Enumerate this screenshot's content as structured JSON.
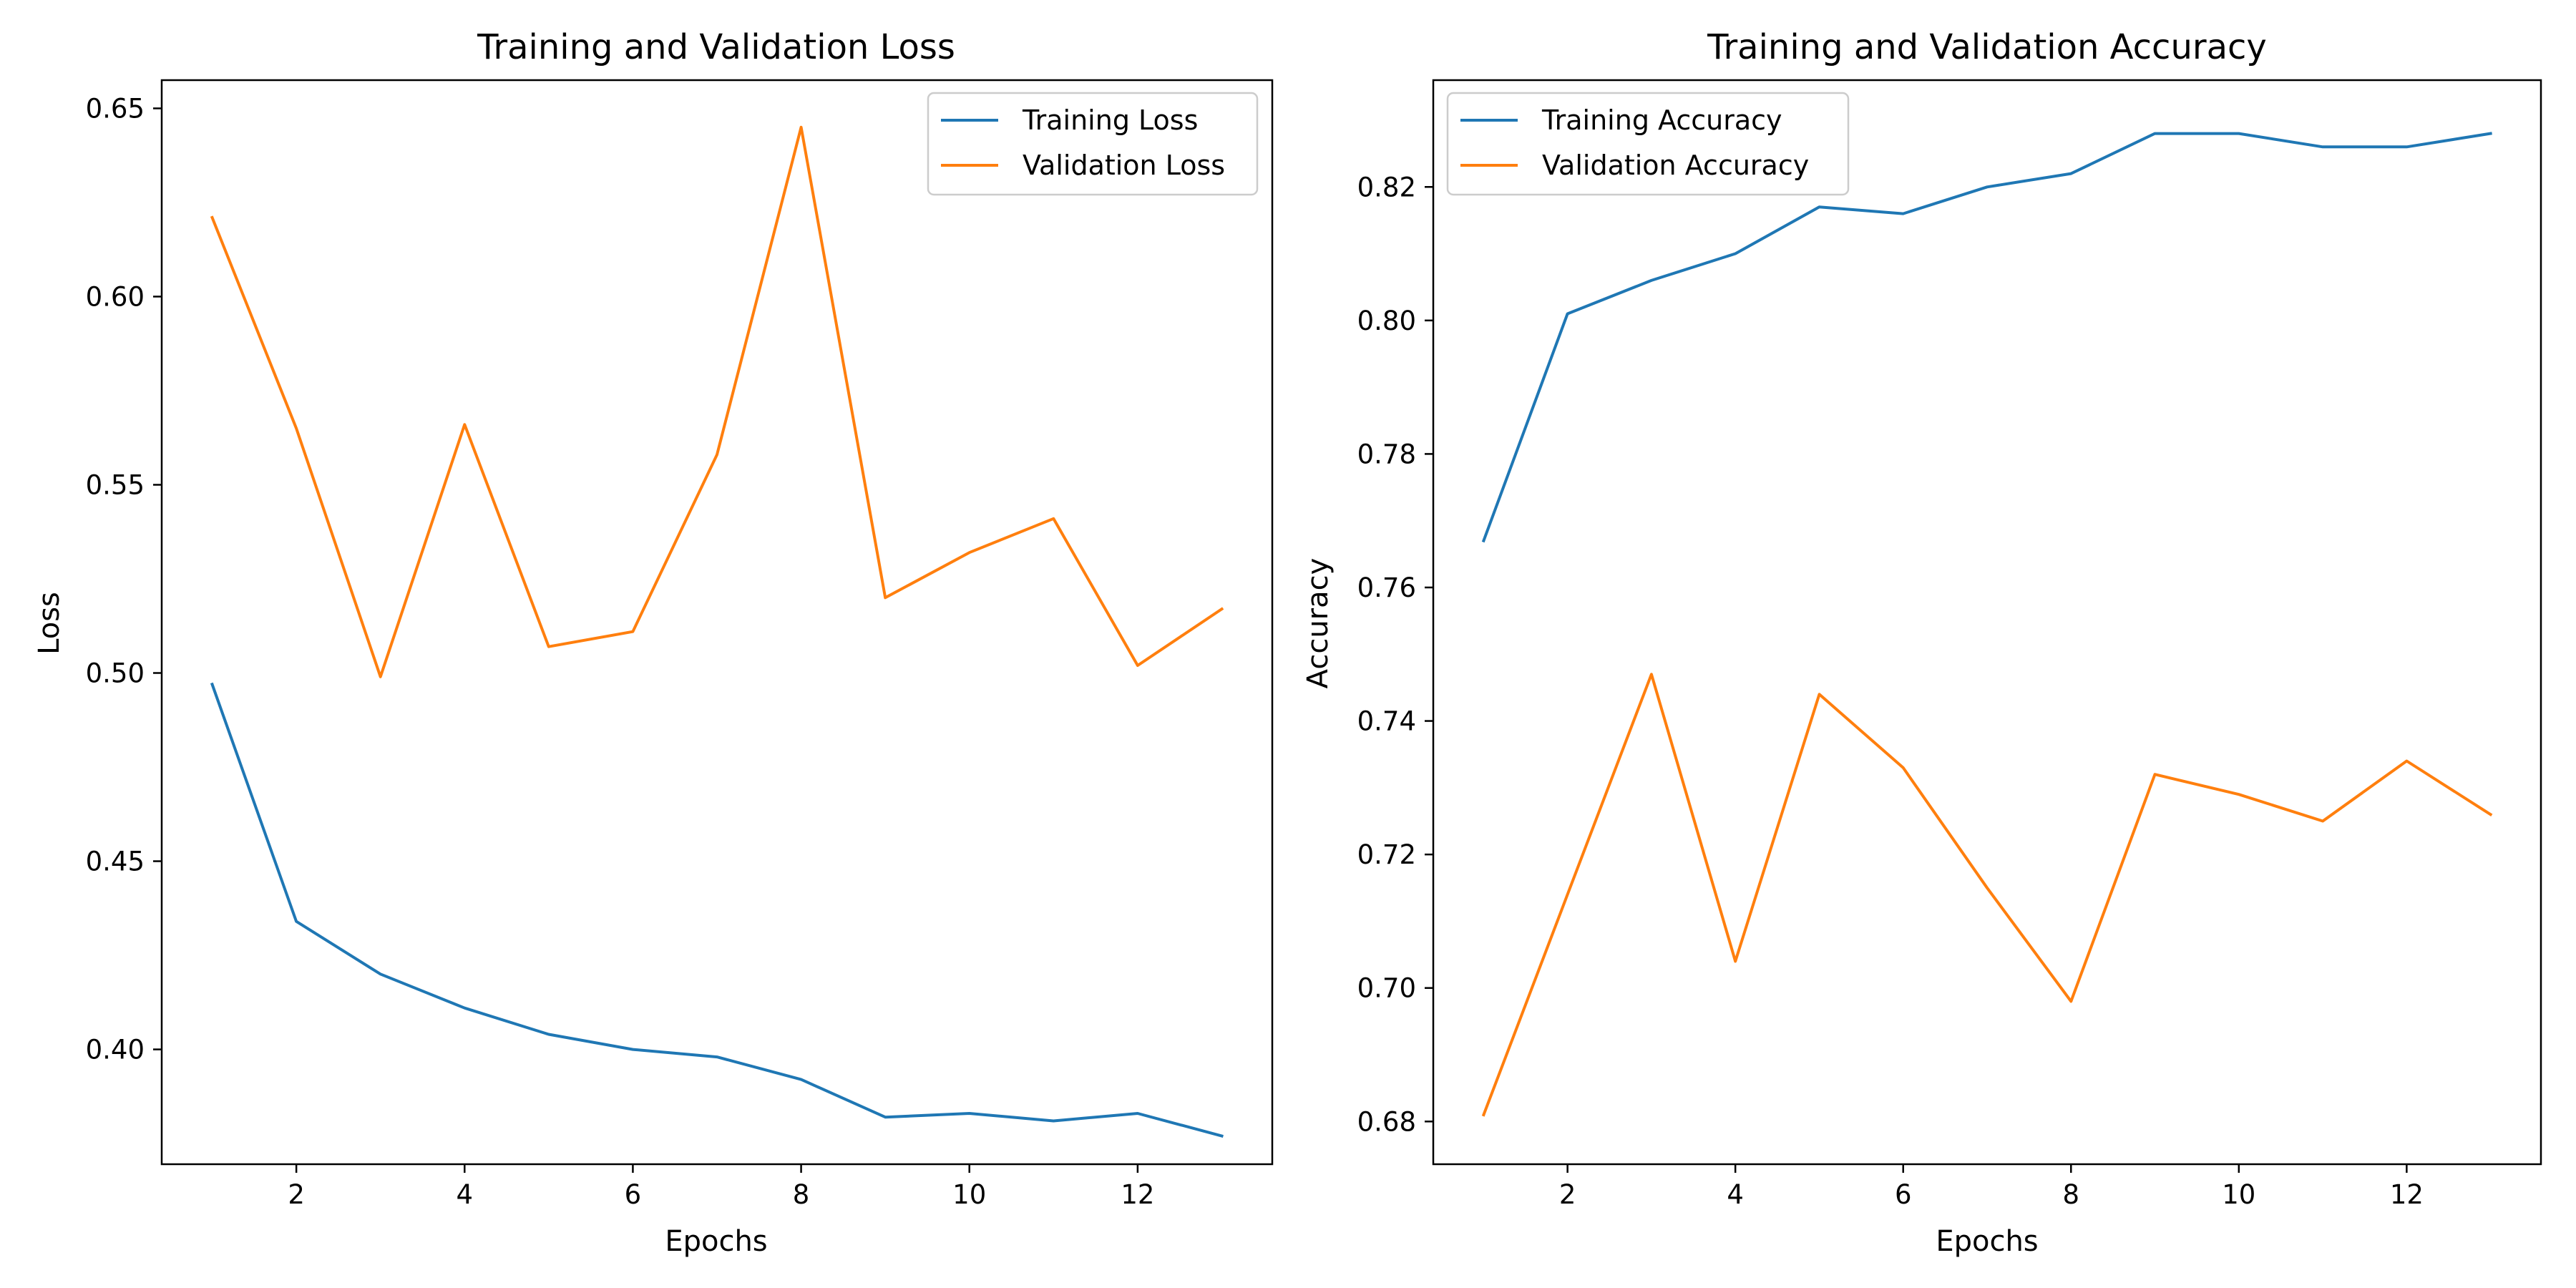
{
  "chart_data": [
    {
      "type": "line",
      "title": "Training and Validation Loss",
      "xlabel": "Epochs",
      "ylabel": "Loss",
      "x": [
        1,
        2,
        3,
        4,
        5,
        6,
        7,
        8,
        9,
        10,
        11,
        12,
        13
      ],
      "xlim": [
        0.4,
        13.6
      ],
      "ylim": [
        0.3695,
        0.6575
      ],
      "xticks": [
        2,
        4,
        6,
        8,
        10,
        12
      ],
      "yticks": [
        0.4,
        0.45,
        0.5,
        0.55,
        0.6,
        0.65
      ],
      "xtick_labels": [
        "2",
        "4",
        "6",
        "8",
        "10",
        "12"
      ],
      "ytick_labels": [
        "0.40",
        "0.45",
        "0.50",
        "0.55",
        "0.60",
        "0.65"
      ],
      "legend_position": "top-right",
      "grid": false,
      "series": [
        {
          "name": "Training Loss",
          "color": "#1f77b4",
          "values": [
            0.497,
            0.434,
            0.42,
            0.411,
            0.404,
            0.4,
            0.398,
            0.392,
            0.382,
            0.383,
            0.381,
            0.383,
            0.377
          ]
        },
        {
          "name": "Validation Loss",
          "color": "#ff7f0e",
          "values": [
            0.621,
            0.565,
            0.499,
            0.566,
            0.507,
            0.511,
            0.558,
            0.645,
            0.52,
            0.532,
            0.541,
            0.502,
            0.517
          ]
        }
      ]
    },
    {
      "type": "line",
      "title": "Training and Validation Accuracy",
      "xlabel": "Epochs",
      "ylabel": "Accuracy",
      "x": [
        1,
        2,
        3,
        4,
        5,
        6,
        7,
        8,
        9,
        10,
        11,
        12,
        13
      ],
      "xlim": [
        0.4,
        13.6
      ],
      "ylim": [
        0.6736,
        0.836
      ],
      "xticks": [
        2,
        4,
        6,
        8,
        10,
        12
      ],
      "yticks": [
        0.68,
        0.7,
        0.72,
        0.74,
        0.76,
        0.78,
        0.8,
        0.82
      ],
      "xtick_labels": [
        "2",
        "4",
        "6",
        "8",
        "10",
        "12"
      ],
      "ytick_labels": [
        "0.68",
        "0.70",
        "0.72",
        "0.74",
        "0.76",
        "0.78",
        "0.80",
        "0.82"
      ],
      "legend_position": "top-left",
      "grid": false,
      "series": [
        {
          "name": "Training Accuracy",
          "color": "#1f77b4",
          "values": [
            0.767,
            0.801,
            0.806,
            0.81,
            0.817,
            0.816,
            0.82,
            0.822,
            0.828,
            0.828,
            0.826,
            0.826,
            0.828
          ]
        },
        {
          "name": "Validation Accuracy",
          "color": "#ff7f0e",
          "values": [
            0.681,
            0.714,
            0.747,
            0.704,
            0.744,
            0.733,
            0.715,
            0.698,
            0.732,
            0.729,
            0.725,
            0.734,
            0.726
          ]
        }
      ]
    }
  ]
}
